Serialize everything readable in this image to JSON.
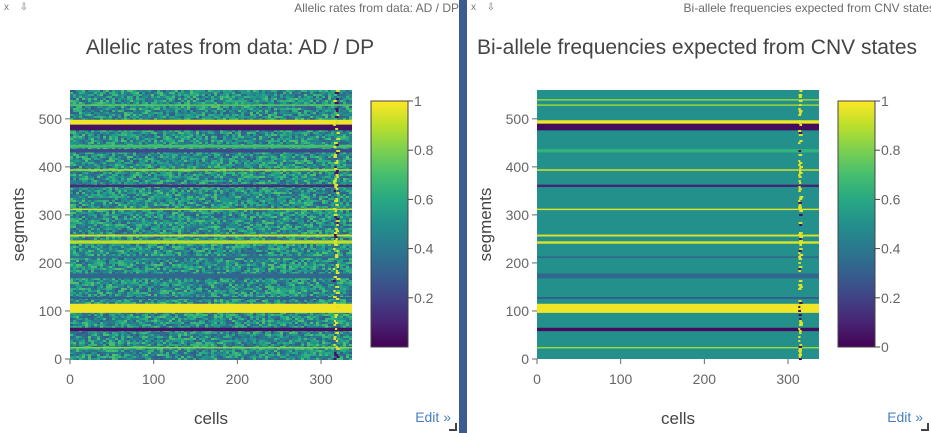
{
  "panels": [
    {
      "header_title": "Allelic rates from data: AD / DP",
      "controls": "x ⇩",
      "edit_label": "Edit »"
    },
    {
      "header_title": "Bi-allele frequencies expected from CNV states",
      "controls": "x ⇩",
      "edit_label": "Edit »"
    }
  ],
  "chart_data": [
    {
      "type": "heatmap",
      "title": "Allelic rates from data: AD / DP",
      "xlabel": "cells",
      "ylabel": "segments",
      "xlim": [
        0,
        337
      ],
      "ylim": [
        0,
        560
      ],
      "xticks": [
        0,
        100,
        200,
        300
      ],
      "yticks": [
        0,
        100,
        200,
        300,
        400,
        500
      ],
      "colorbar": {
        "range": [
          0,
          1
        ],
        "ticks": [
          0.2,
          0.4,
          0.6,
          0.8,
          1
        ],
        "colorscale": "viridis"
      },
      "background_value": 0.5,
      "noise": true,
      "bands": [
        {
          "y": [
            22,
            25
          ],
          "value": 0.82
        },
        {
          "y": [
            58,
            65
          ],
          "value": 0.05
        },
        {
          "y": [
            96,
            115
          ],
          "value": 0.98
        },
        {
          "y": [
            125,
            129
          ],
          "value": 0.3
        },
        {
          "y": [
            168,
            178
          ],
          "value": 0.33
        },
        {
          "y": [
            210,
            214
          ],
          "value": 0.35
        },
        {
          "y": [
            240,
            247
          ],
          "value": 0.9
        },
        {
          "y": [
            255,
            259
          ],
          "value": 0.93
        },
        {
          "y": [
            310,
            313
          ],
          "value": 0.9
        },
        {
          "y": [
            358,
            363
          ],
          "value": 0.12
        },
        {
          "y": [
            392,
            395
          ],
          "value": 0.9
        },
        {
          "y": [
            430,
            437
          ],
          "value": 0.22
        },
        {
          "y": [
            440,
            446
          ],
          "value": 0.7
        },
        {
          "y": [
            476,
            488
          ],
          "value": 0.05
        },
        {
          "y": [
            488,
            498
          ],
          "value": 0.98
        },
        {
          "y": [
            527,
            530
          ],
          "value": 0.75
        }
      ],
      "column_streak": {
        "x": [
          314,
          321
        ],
        "value": 0.95
      }
    },
    {
      "type": "heatmap",
      "title": "Bi-allele frequencies expected from CNV states",
      "xlabel": "cells",
      "ylabel": "segments",
      "xlim": [
        0,
        337
      ],
      "ylim": [
        0,
        560
      ],
      "xticks": [
        0,
        100,
        200,
        300
      ],
      "yticks": [
        0,
        100,
        200,
        300,
        400,
        500
      ],
      "colorbar": {
        "range": [
          0,
          1
        ],
        "ticks": [
          0,
          0.2,
          0.4,
          0.6,
          0.8,
          1
        ],
        "colorscale": "viridis"
      },
      "background_value": 0.5,
      "noise": false,
      "bands": [
        {
          "y": [
            22,
            25
          ],
          "value": 0.85
        },
        {
          "y": [
            58,
            65
          ],
          "value": 0.03
        },
        {
          "y": [
            96,
            115
          ],
          "value": 0.98
        },
        {
          "y": [
            125,
            129
          ],
          "value": 0.3
        },
        {
          "y": [
            168,
            178
          ],
          "value": 0.33
        },
        {
          "y": [
            210,
            214
          ],
          "value": 0.35
        },
        {
          "y": [
            240,
            245
          ],
          "value": 0.95
        },
        {
          "y": [
            255,
            259
          ],
          "value": 0.95
        },
        {
          "y": [
            310,
            313
          ],
          "value": 0.95
        },
        {
          "y": [
            358,
            363
          ],
          "value": 0.1
        },
        {
          "y": [
            392,
            395
          ],
          "value": 0.95
        },
        {
          "y": [
            430,
            437
          ],
          "value": 0.65
        },
        {
          "y": [
            476,
            490
          ],
          "value": 0.03
        },
        {
          "y": [
            490,
            497
          ],
          "value": 0.98
        },
        {
          "y": [
            527,
            530
          ],
          "value": 0.85
        },
        {
          "y": [
            538,
            541
          ],
          "value": 0.85
        }
      ],
      "column_streak": {
        "x": [
          312,
          316
        ],
        "value": 0.95
      }
    }
  ]
}
